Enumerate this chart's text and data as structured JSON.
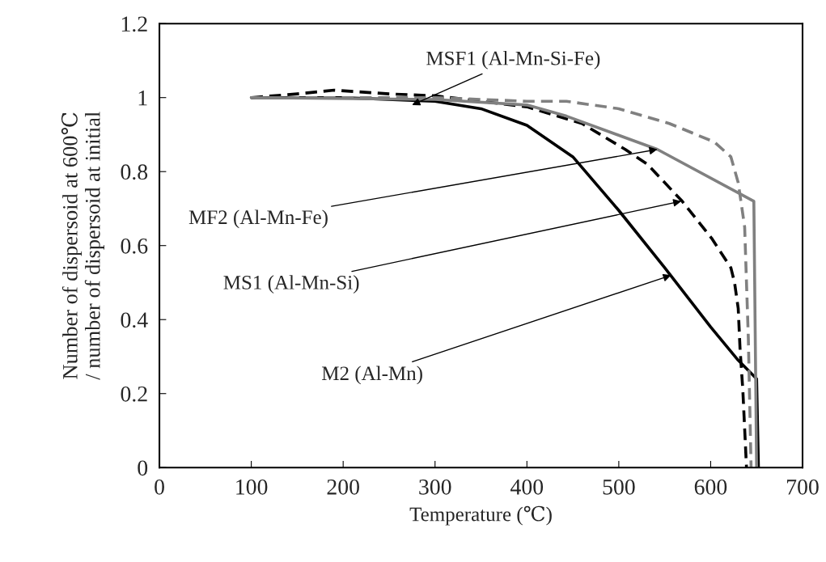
{
  "chart_data": {
    "type": "line",
    "xlabel": "Temperature (℃)",
    "ylabel": "Number of dispersoid at 600℃\n/ number of dispersoid at initial",
    "xlim": [
      0,
      700
    ],
    "xticks": [
      0,
      100,
      200,
      300,
      400,
      500,
      600,
      700
    ],
    "ylim": [
      0,
      1.2
    ],
    "yticks": [
      0,
      0.2,
      0.4,
      0.6,
      0.8,
      1,
      1.2
    ],
    "grid": false,
    "legend": false,
    "marker": "none",
    "series": [
      {
        "color": "#000000",
        "line_style": "solid",
        "x": [
          100,
          200,
          300,
          350,
          400,
          450,
          500,
          550,
          600,
          630,
          650,
          652
        ],
        "values": [
          1.0,
          1.0,
          0.99,
          0.97,
          0.925,
          0.84,
          0.695,
          0.54,
          0.38,
          0.29,
          0.24,
          0
        ]
      },
      {
        "color": "#000000",
        "line_style": "dashed",
        "x": [
          100,
          150,
          190,
          250,
          300,
          350,
          400,
          460,
          507,
          531,
          569,
          601,
          622,
          626,
          630,
          632,
          635,
          639
        ],
        "values": [
          1.0,
          1.01,
          1.02,
          1.01,
          1.005,
          0.99,
          0.975,
          0.93,
          0.86,
          0.82,
          0.72,
          0.62,
          0.54,
          0.5,
          0.43,
          0.32,
          0.21,
          0
        ]
      },
      {
        "color": "#808080",
        "line_style": "solid",
        "x": [
          100,
          300,
          400,
          443,
          542,
          647,
          650
        ],
        "values": [
          1.0,
          0.995,
          0.98,
          0.95,
          0.86,
          0.72,
          0
        ]
      },
      {
        "color": "#808080",
        "line_style": "dashed",
        "x": [
          100,
          300,
          400,
          443,
          500,
          555,
          604,
          622,
          630,
          637,
          641,
          644
        ],
        "values": [
          1.0,
          1.0,
          0.99,
          0.99,
          0.97,
          0.93,
          0.88,
          0.84,
          0.77,
          0.65,
          0.35,
          0
        ]
      }
    ],
    "annotations": [
      {
        "text": "MSF1 (Al-Mn-Si-Fe)",
        "x": 275,
        "y": 0.98
      },
      {
        "text": "MF2 (Al-Mn-Fe)",
        "x": 542,
        "y": 0.86
      },
      {
        "text": "MS1 (Al-Mn-Si)",
        "x": 568,
        "y": 0.72
      },
      {
        "text": "M2 (Al-Mn)",
        "x": 557,
        "y": 0.52
      }
    ]
  }
}
